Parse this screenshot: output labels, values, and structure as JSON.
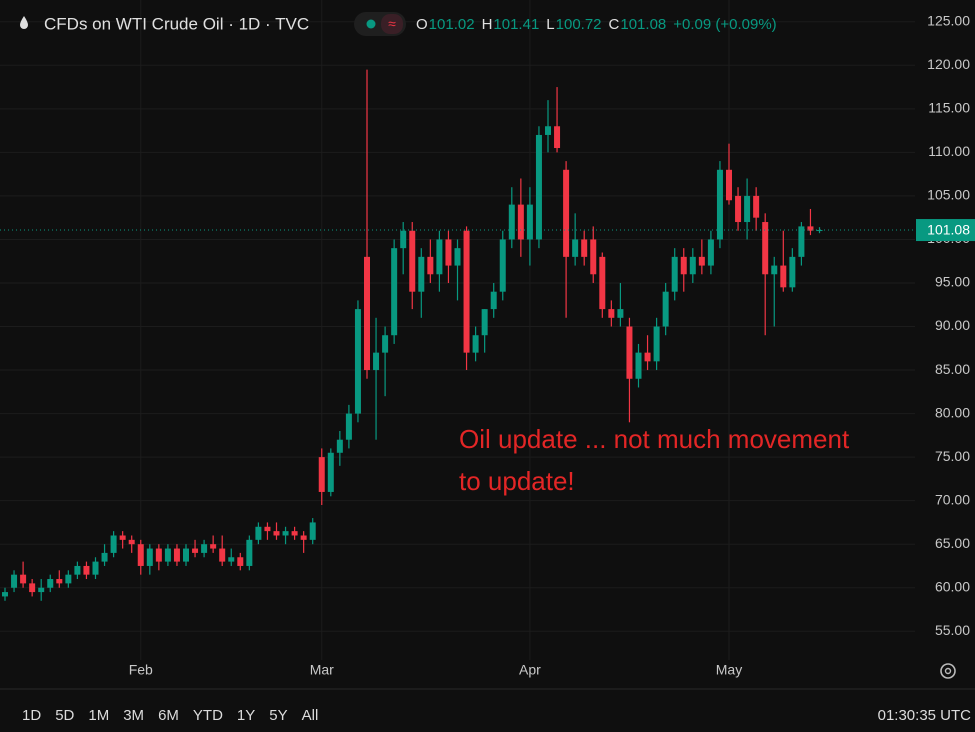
{
  "chart_data": {
    "type": "candlestick",
    "title": "CFDs on WTI Crude Oil · 1D · TVC",
    "quote": [
      {
        "label": "O",
        "value": "101.02"
      },
      {
        "label": "H",
        "value": "101.41"
      },
      {
        "label": "L",
        "value": "100.72"
      },
      {
        "label": "C",
        "value": "101.08"
      }
    ],
    "change": "+0.09 (+0.09%)",
    "annotation": [
      "Oil update ... not much movement",
      "to update!"
    ],
    "up_color": "#089981",
    "down_color": "#f23645",
    "annotation_color": "#e32626",
    "grid": true,
    "ylim": [
      51.7,
      127.5
    ],
    "yticks": [
      {
        "value": 55,
        "label": "55.00"
      },
      {
        "value": 60,
        "label": "60.00"
      },
      {
        "value": 65,
        "label": "65.00"
      },
      {
        "value": 70,
        "label": "70.00"
      },
      {
        "value": 75,
        "label": "75.00"
      },
      {
        "value": 80,
        "label": "80.00"
      },
      {
        "value": 85,
        "label": "85.00"
      },
      {
        "value": 90,
        "label": "90.00"
      },
      {
        "value": 95,
        "label": "95.00"
      },
      {
        "value": 100,
        "label": "100.00"
      },
      {
        "value": 105,
        "label": "105.00"
      },
      {
        "value": 110,
        "label": "110.00"
      },
      {
        "value": 115,
        "label": "115.00"
      },
      {
        "value": 120,
        "label": "120.00"
      },
      {
        "value": 125,
        "label": "125.00"
      }
    ],
    "categories": [
      null,
      null,
      null,
      null,
      null,
      null,
      null,
      null,
      null,
      null,
      null,
      null,
      null,
      null,
      null,
      "Feb",
      null,
      null,
      null,
      null,
      null,
      null,
      null,
      null,
      null,
      null,
      null,
      null,
      null,
      null,
      null,
      null,
      null,
      null,
      null,
      "Mar",
      null,
      null,
      null,
      null,
      null,
      null,
      null,
      null,
      null,
      null,
      null,
      null,
      null,
      null,
      null,
      null,
      null,
      null,
      null,
      null,
      null,
      null,
      "Apr",
      null,
      null,
      null,
      null,
      null,
      null,
      null,
      null,
      null,
      null,
      null,
      null,
      null,
      null,
      null,
      null,
      null,
      null,
      null,
      null,
      null,
      "May",
      null,
      null,
      null,
      null,
      null,
      null,
      null,
      null,
      null,
      null
    ],
    "open": [
      59,
      60,
      61.5,
      60.5,
      59.5,
      60,
      61,
      60.5,
      61.5,
      62.5,
      61.5,
      63,
      64,
      66,
      65.5,
      65,
      62.5,
      64.5,
      63,
      64.5,
      63,
      64.5,
      64,
      65,
      64.5,
      63,
      63.5,
      62.5,
      65.5,
      67,
      66.5,
      66,
      66.5,
      66,
      65.5,
      75,
      71,
      75.5,
      77,
      80,
      98,
      85,
      87,
      89,
      99,
      101,
      94,
      98,
      96,
      100,
      97,
      101,
      87,
      89,
      92,
      94,
      100,
      104,
      100,
      100,
      112,
      113,
      108,
      98,
      100,
      100,
      98,
      92,
      91,
      90,
      84,
      87,
      86,
      90,
      94,
      98,
      96,
      98,
      97,
      100,
      108,
      105,
      102,
      105,
      102,
      96,
      97,
      94.5,
      98,
      101.5,
      101.02
    ],
    "high": [
      60,
      62,
      63,
      61,
      61,
      61.5,
      62,
      62,
      63,
      63,
      63.5,
      65,
      66.5,
      66.5,
      66,
      65.5,
      65,
      65,
      65,
      65,
      65,
      65.5,
      65.5,
      66,
      66,
      64.5,
      64,
      66,
      67.5,
      67.5,
      67.5,
      67,
      67,
      66.5,
      68,
      76,
      76,
      78,
      81,
      93,
      119.5,
      91,
      90,
      100,
      102,
      102,
      99,
      100,
      101,
      101,
      100,
      101.5,
      90,
      92,
      95,
      101,
      106,
      107,
      106,
      113,
      116,
      117.5,
      109,
      103,
      101,
      101.5,
      98.5,
      93,
      95,
      91,
      88,
      89,
      91,
      95,
      99,
      99,
      99,
      100,
      101,
      109,
      111,
      106,
      107,
      106,
      103,
      98,
      101,
      99,
      102,
      103.5,
      101.41
    ],
    "low": [
      58.5,
      59.5,
      60,
      59,
      58.5,
      59.5,
      60,
      60,
      61,
      61,
      61,
      62.5,
      63.5,
      64.5,
      64,
      61.5,
      61.5,
      62,
      62.5,
      62.5,
      62.5,
      63.5,
      63.5,
      64,
      62.5,
      62.5,
      62,
      62,
      65,
      65.5,
      65.5,
      65,
      65.5,
      64,
      65,
      69.5,
      70.5,
      74,
      76,
      79,
      84,
      77,
      82,
      88,
      96,
      92,
      91,
      95,
      94,
      95,
      93,
      85,
      86,
      87,
      91,
      93,
      99,
      98,
      97,
      99,
      110,
      110,
      91,
      97,
      97,
      95,
      91,
      90,
      90,
      79,
      83,
      85,
      85,
      89,
      93,
      94,
      95,
      96,
      96,
      99,
      104,
      101,
      100,
      101,
      89,
      90,
      94,
      94,
      97,
      100.5,
      100.72
    ],
    "close": [
      59.5,
      61.5,
      60.5,
      59.5,
      60,
      61,
      60.5,
      61.5,
      62.5,
      61.5,
      63,
      64,
      66,
      65.5,
      65,
      62.5,
      64.5,
      63,
      64.5,
      63,
      64.5,
      64,
      65,
      64.5,
      63,
      63.5,
      62.5,
      65.5,
      67,
      66.5,
      66,
      66.5,
      66,
      65.5,
      67.5,
      71,
      75.5,
      77,
      80,
      92,
      85,
      87,
      89,
      99,
      101,
      94,
      98,
      96,
      100,
      97,
      99,
      87,
      89,
      92,
      94,
      100,
      104,
      100,
      104,
      112,
      113,
      110.5,
      98,
      100,
      98,
      96,
      92,
      91,
      92,
      84,
      87,
      86,
      90,
      94,
      98,
      96,
      98,
      97,
      100,
      108,
      104.5,
      102,
      105,
      102.5,
      96,
      97,
      94.5,
      98,
      101.5,
      101,
      101.08
    ]
  },
  "toolbar": {
    "ranges": [
      "1D",
      "5D",
      "1M",
      "3M",
      "6M",
      "YTD",
      "1Y",
      "5Y",
      "All"
    ],
    "time": "01:30:35 UTC"
  }
}
